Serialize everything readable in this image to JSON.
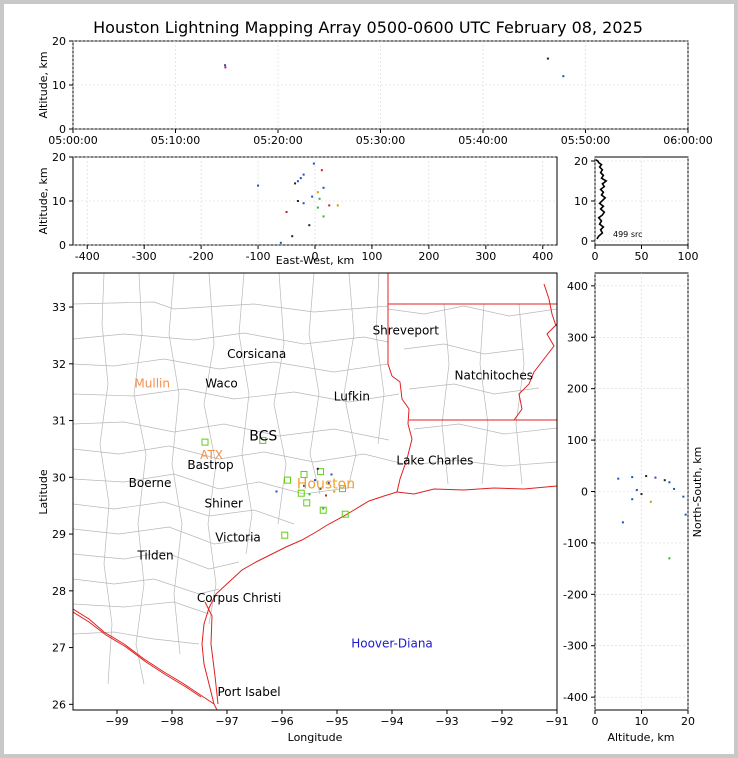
{
  "chart_data": [
    {
      "type": "scatter",
      "panel": "altitude-vs-time",
      "title": "Houston Lightning Mapping Array 0500-0600 UTC February 08, 2025",
      "xlabel": "",
      "ylabel": "Altitude, km",
      "x_ticks": [
        "05:00:00",
        "05:10:00",
        "05:20:00",
        "05:30:00",
        "05:40:00",
        "05:50:00",
        "06:00:00"
      ],
      "y_ticks": [
        "0",
        "10",
        "20"
      ],
      "xlim": [
        "05:00:00",
        "06:00:00"
      ],
      "ylim": [
        0,
        20
      ],
      "points": [
        {
          "x": "05:14:50",
          "y": 14.5,
          "color": "#2050c0"
        },
        {
          "x": "05:14:52",
          "y": 14.0,
          "color": "#cc2020"
        },
        {
          "x": "05:46:20",
          "y": 16.0,
          "color": "#202020"
        },
        {
          "x": "05:47:50",
          "y": 12.0,
          "color": "#2050c0"
        }
      ]
    },
    {
      "type": "scatter",
      "panel": "altitude-vs-east-west",
      "xlabel": "East-West, km",
      "ylabel": "Altitude, km",
      "x_ticks": [
        -400,
        -300,
        -200,
        -100,
        0,
        100,
        200,
        300,
        400
      ],
      "y_ticks": [
        0,
        10,
        20
      ],
      "xlim": [
        -425,
        425
      ],
      "ylim": [
        0,
        20
      ],
      "points": [
        {
          "x": -2,
          "y": 18.5,
          "color": "#2050c0"
        },
        {
          "x": 12,
          "y": 17.0,
          "color": "#cc2020"
        },
        {
          "x": -20,
          "y": 16.0,
          "color": "#2050c0"
        },
        {
          "x": -25,
          "y": 15.2,
          "color": "#2050c0"
        },
        {
          "x": -30,
          "y": 14.5,
          "color": "#2050c0"
        },
        {
          "x": -35,
          "y": 14.0,
          "color": "#202020"
        },
        {
          "x": -100,
          "y": 13.5,
          "color": "#2050c0"
        },
        {
          "x": 15,
          "y": 13.0,
          "color": "#2050c0"
        },
        {
          "x": 5,
          "y": 12.0,
          "color": "#c0a000"
        },
        {
          "x": -5,
          "y": 11.0,
          "color": "#2050c0"
        },
        {
          "x": 8,
          "y": 10.5,
          "color": "#30b030"
        },
        {
          "x": -30,
          "y": 10.0,
          "color": "#202020"
        },
        {
          "x": -20,
          "y": 9.5,
          "color": "#2050c0"
        },
        {
          "x": 25,
          "y": 9.0,
          "color": "#cc2020"
        },
        {
          "x": 40,
          "y": 9.0,
          "color": "#c0a000"
        },
        {
          "x": 5,
          "y": 8.5,
          "color": "#30b030"
        },
        {
          "x": -50,
          "y": 7.5,
          "color": "#cc2020"
        },
        {
          "x": 15,
          "y": 6.5,
          "color": "#30b030"
        },
        {
          "x": -10,
          "y": 4.5,
          "color": "#202020"
        },
        {
          "x": -40,
          "y": 2.0,
          "color": "#202020"
        },
        {
          "x": -60,
          "y": 0.5,
          "color": "#2050c0"
        }
      ]
    },
    {
      "type": "line",
      "panel": "altitude-histogram",
      "annotation": "499 src",
      "x_ticks": [
        0,
        50,
        100
      ],
      "y_ticks": [
        0,
        10,
        20
      ],
      "xlim": [
        0,
        100
      ],
      "ylim": [
        -1,
        21
      ],
      "series": [
        {
          "x": [
            2,
            4,
            8,
            6,
            9,
            5,
            7,
            4,
            8,
            10,
            6,
            9,
            5,
            8,
            11,
            7,
            9,
            6,
            10,
            8,
            12,
            7,
            9,
            6,
            8,
            5,
            7,
            4,
            3,
            1
          ],
          "y": [
            0.5,
            1.2,
            2,
            2.8,
            3.5,
            4.2,
            5,
            5.8,
            6.5,
            7.2,
            8,
            8.7,
            9.4,
            10.1,
            10.8,
            11.5,
            12.2,
            12.9,
            13.6,
            14.3,
            15,
            15.7,
            16.4,
            17.1,
            17.8,
            18.5,
            19.1,
            19.6,
            20,
            20.3
          ]
        }
      ]
    },
    {
      "type": "scatter",
      "panel": "plan-view-map",
      "xlabel": "Longitude",
      "ylabel": "Latitude",
      "x_ticks": [
        "−99",
        "−98",
        "−97",
        "−96",
        "−95",
        "−94",
        "−93",
        "−92",
        "−91"
      ],
      "y_ticks": [
        "26",
        "27",
        "28",
        "29",
        "30",
        "31",
        "32",
        "33"
      ],
      "xlim": [
        -99.8,
        -91
      ],
      "ylim": [
        25.9,
        33.6
      ],
      "map_labels": [
        {
          "text": "Corsicana",
          "lon": -96.46,
          "lat": 32.1,
          "color": "#000000"
        },
        {
          "text": "Shreveport",
          "lon": -93.75,
          "lat": 32.52,
          "color": "#000000"
        },
        {
          "text": "Mullin",
          "lon": -98.36,
          "lat": 31.58,
          "color": "#f09050"
        },
        {
          "text": "Waco",
          "lon": -97.1,
          "lat": 31.58,
          "color": "#000000"
        },
        {
          "text": "Natchitoches",
          "lon": -92.15,
          "lat": 31.72,
          "color": "#000000"
        },
        {
          "text": "Lufkin",
          "lon": -94.73,
          "lat": 31.35,
          "color": "#000000"
        },
        {
          "text": "BCS",
          "lon": -96.34,
          "lat": 30.65,
          "color": "#000000"
        },
        {
          "text": "ATX",
          "lon": -97.28,
          "lat": 30.32,
          "color": "#f09050"
        },
        {
          "text": "Lake Charles",
          "lon": -93.22,
          "lat": 30.23,
          "color": "#000000"
        },
        {
          "text": "Bastrop",
          "lon": -97.3,
          "lat": 30.15,
          "color": "#000000"
        },
        {
          "text": "Boerne",
          "lon": -98.4,
          "lat": 29.83,
          "color": "#000000"
        },
        {
          "text": "Houston",
          "lon": -95.2,
          "lat": 29.8,
          "color": "#f0a030"
        },
        {
          "text": "Shiner",
          "lon": -97.06,
          "lat": 29.47,
          "color": "#000000"
        },
        {
          "text": "Victoria",
          "lon": -96.8,
          "lat": 28.87,
          "color": "#000000"
        },
        {
          "text": "Tilden",
          "lon": -98.3,
          "lat": 28.55,
          "color": "#000000"
        },
        {
          "text": "Corpus Christi",
          "lon": -96.78,
          "lat": 27.8,
          "color": "#000000"
        },
        {
          "text": "Hoover-Diana",
          "lon": -94.0,
          "lat": 27.0,
          "color": "#1a1ad0"
        },
        {
          "text": "Port Isabel",
          "lon": -96.6,
          "lat": 26.15,
          "color": "#000000"
        }
      ],
      "stations": [
        {
          "lon": -97.4,
          "lat": 30.62
        },
        {
          "lon": -96.35,
          "lat": 30.65
        },
        {
          "lon": -95.9,
          "lat": 29.95
        },
        {
          "lon": -95.6,
          "lat": 30.05
        },
        {
          "lon": -95.3,
          "lat": 30.1
        },
        {
          "lon": -95.65,
          "lat": 29.72
        },
        {
          "lon": -95.25,
          "lat": 29.42
        },
        {
          "lon": -94.9,
          "lat": 29.8
        },
        {
          "lon": -94.85,
          "lat": 29.35
        },
        {
          "lon": -95.95,
          "lat": 28.98
        },
        {
          "lon": -95.55,
          "lat": 29.55
        }
      ],
      "points": [
        {
          "lon": -95.4,
          "lat": 29.95,
          "color": "#2050c0"
        },
        {
          "lon": -95.3,
          "lat": 29.8,
          "color": "#202020"
        },
        {
          "lon": -95.15,
          "lat": 29.9,
          "color": "#2050c0"
        },
        {
          "lon": -95.5,
          "lat": 29.7,
          "color": "#30b030"
        },
        {
          "lon": -95.2,
          "lat": 29.68,
          "color": "#cc2020"
        },
        {
          "lon": -95.05,
          "lat": 29.75,
          "color": "#c0a000"
        },
        {
          "lon": -95.6,
          "lat": 29.85,
          "color": "#2050c0"
        },
        {
          "lon": -95.1,
          "lat": 30.05,
          "color": "#2050c0"
        },
        {
          "lon": -96.1,
          "lat": 29.75,
          "color": "#2050c0"
        },
        {
          "lon": -95.25,
          "lat": 29.45,
          "color": "#30b030"
        },
        {
          "lon": -95.35,
          "lat": 30.15,
          "color": "#202020"
        }
      ]
    },
    {
      "type": "scatter",
      "panel": "north-south-vs-altitude",
      "xlabel": "Altitude, km",
      "ylabel": "North-South, km",
      "x_ticks": [
        0,
        10,
        20
      ],
      "y_ticks": [
        -400,
        -300,
        -200,
        -100,
        0,
        100,
        200,
        300,
        400
      ],
      "xlim": [
        0,
        20
      ],
      "ylim": [
        -425,
        425
      ],
      "points": [
        {
          "x": 5,
          "y": 25,
          "color": "#2050c0"
        },
        {
          "x": 8,
          "y": 28,
          "color": "#2050c0"
        },
        {
          "x": 11,
          "y": 30,
          "color": "#202020"
        },
        {
          "x": 13,
          "y": 27,
          "color": "#2050c0"
        },
        {
          "x": 15,
          "y": 22,
          "color": "#202020"
        },
        {
          "x": 16,
          "y": 18,
          "color": "#2050c0"
        },
        {
          "x": 17,
          "y": 5,
          "color": "#2050c0"
        },
        {
          "x": 9,
          "y": 3,
          "color": "#2050c0"
        },
        {
          "x": 10,
          "y": -5,
          "color": "#202020"
        },
        {
          "x": 8,
          "y": -15,
          "color": "#2050c0"
        },
        {
          "x": 12,
          "y": -20,
          "color": "#c0a000"
        },
        {
          "x": 19,
          "y": -10,
          "color": "#2050c0"
        },
        {
          "x": 19.5,
          "y": -45,
          "color": "#2050c0"
        },
        {
          "x": 6,
          "y": -60,
          "color": "#2050c0"
        },
        {
          "x": 16,
          "y": -130,
          "color": "#30b030"
        }
      ]
    }
  ]
}
